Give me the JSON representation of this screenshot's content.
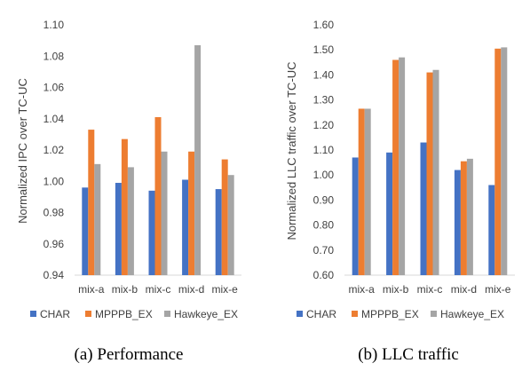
{
  "colors": {
    "axis": "#d9d9d9",
    "text": "#404040"
  },
  "chart_data": [
    {
      "type": "bar",
      "caption": "(a) Performance",
      "ylabel": "Normalized IPC over TC-UC",
      "ylim": [
        0.94,
        1.1
      ],
      "yticks": [
        "0.94",
        "0.96",
        "0.98",
        "1.00",
        "1.02",
        "1.04",
        "1.06",
        "1.08",
        "1.10"
      ],
      "categories": [
        "mix-a",
        "mix-b",
        "mix-c",
        "mix-d",
        "mix-e"
      ],
      "grid": false,
      "legend_position": "bottom",
      "series": [
        {
          "name": "CHAR",
          "color": "#4472c4",
          "values": [
            0.996,
            0.999,
            0.994,
            1.001,
            0.995
          ]
        },
        {
          "name": "MPPPB_EX",
          "color": "#ed7d31",
          "values": [
            1.033,
            1.027,
            1.041,
            1.019,
            1.014
          ]
        },
        {
          "name": "Hawkeye_EX",
          "color": "#a5a5a5",
          "values": [
            1.011,
            1.009,
            1.019,
            1.087,
            1.004
          ]
        }
      ]
    },
    {
      "type": "bar",
      "caption": "(b) LLC traffic",
      "ylabel": "Normalized LLC traffic over TC-UC",
      "ylim": [
        0.6,
        1.6
      ],
      "yticks": [
        "0.60",
        "0.70",
        "0.80",
        "0.90",
        "1.00",
        "1.10",
        "1.20",
        "1.30",
        "1.40",
        "1.50",
        "1.60"
      ],
      "categories": [
        "mix-a",
        "mix-b",
        "mix-c",
        "mix-d",
        "mix-e"
      ],
      "grid": false,
      "legend_position": "bottom",
      "series": [
        {
          "name": "CHAR",
          "color": "#4472c4",
          "values": [
            1.07,
            1.09,
            1.13,
            1.02,
            0.96
          ]
        },
        {
          "name": "MPPPB_EX",
          "color": "#ed7d31",
          "values": [
            1.265,
            1.46,
            1.41,
            1.055,
            1.505
          ]
        },
        {
          "name": "Hawkeye_EX",
          "color": "#a5a5a5",
          "values": [
            1.265,
            1.47,
            1.42,
            1.065,
            1.51
          ]
        }
      ]
    }
  ]
}
